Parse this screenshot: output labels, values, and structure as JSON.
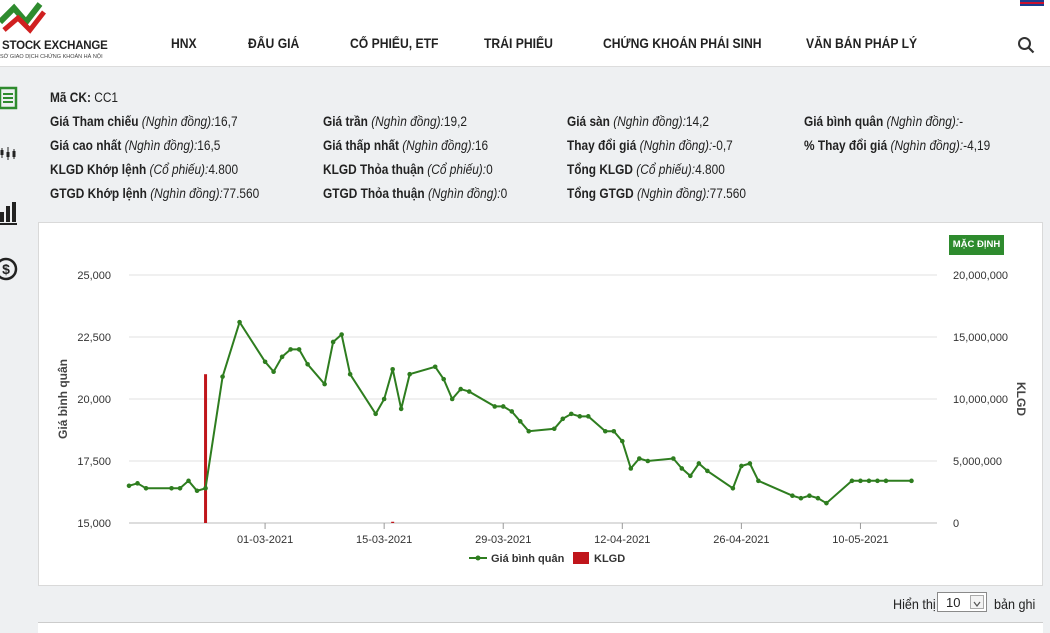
{
  "header": {
    "logo_title": "STOCK EXCHANGE",
    "logo_subtitle": "SỞ GIAO DỊCH CHỨNG KHOÁN HÀ NỘI",
    "nav": [
      "HNX",
      "ĐẤU GIÁ",
      "CỔ PHIẾU, ETF",
      "TRÁI PHIẾU",
      "CHỨNG KHOÁN PHÁI SINH",
      "VĂN BẢN PHÁP LÝ"
    ]
  },
  "sidebar": {
    "icons": [
      "list-icon",
      "candlestick-icon",
      "bar-chart-icon",
      "dollar-icon"
    ]
  },
  "info": {
    "code_label": "Mã CK:",
    "code_value": "CC1",
    "rows": [
      [
        {
          "label": "Giá Tham chiếu",
          "unit": "(Nghìn đồng):",
          "value": "16,7"
        },
        {
          "label": "Giá trần",
          "unit": "(Nghìn đồng):",
          "value": "19,2"
        },
        {
          "label": "Giá sàn",
          "unit": "(Nghìn đồng):",
          "value": "14,2"
        },
        {
          "label": "Giá bình quân",
          "unit": "(Nghìn đồng):",
          "value": "-"
        }
      ],
      [
        {
          "label": "Giá cao nhất",
          "unit": "(Nghìn đồng):",
          "value": "16,5"
        },
        {
          "label": "Giá thấp nhất",
          "unit": "(Nghìn đồng):",
          "value": "16"
        },
        {
          "label": "Thay đổi giá",
          "unit": "(Nghìn đồng):",
          "value": "-0,7"
        },
        {
          "label": "% Thay đổi giá",
          "unit": "(Nghìn đồng):",
          "value": "-4,19"
        }
      ],
      [
        {
          "label": "KLGD Khớp lệnh",
          "unit": "(Cổ phiếu):",
          "value": "4.800"
        },
        {
          "label": "KLGD Thỏa thuận",
          "unit": "(Cổ phiếu):",
          "value": "0"
        },
        {
          "label": "Tổng KLGD",
          "unit": "(Cổ phiếu):",
          "value": "4.800"
        },
        null
      ],
      [
        {
          "label": "GTGD Khớp lệnh",
          "unit": "(Nghìn đồng):",
          "value": "77.560"
        },
        {
          "label": "GTGD Thỏa thuận",
          "unit": "(Nghìn đồng):",
          "value": "0"
        },
        {
          "label": "Tổng GTGD",
          "unit": "(Nghìn đồng):",
          "value": "77.560"
        },
        null
      ]
    ]
  },
  "chart_button": "MẶC ĐỊNH",
  "chart_data": {
    "type": "line",
    "ylabel": "Giá bình quân",
    "y2label": "KLGD",
    "ylim": [
      15000,
      25000
    ],
    "y2lim": [
      0,
      20000000
    ],
    "yticks": [
      "25,000",
      "22,500",
      "20,000",
      "17,500",
      "15,000"
    ],
    "y2ticks": [
      "20,000,000",
      "15,000,000",
      "10,000,000",
      "5,000,000",
      "0"
    ],
    "xticks": [
      "01-03-2021",
      "15-03-2021",
      "29-03-2021",
      "12-04-2021",
      "26-04-2021",
      "10-05-2021"
    ],
    "xtick_days": [
      16,
      30,
      44,
      58,
      72,
      86
    ],
    "grid": true,
    "legend_position": "bottom",
    "series": [
      {
        "name": "Giá bình quân",
        "color": "#2e7d1f",
        "x": [
          "2021-02-13",
          "2021-02-14",
          "2021-02-15",
          "2021-02-18",
          "2021-02-19",
          "2021-02-20",
          "2021-02-21",
          "2021-02-22",
          "2021-02-24",
          "2021-02-26",
          "2021-03-01",
          "2021-03-02",
          "2021-03-03",
          "2021-03-04",
          "2021-03-05",
          "2021-03-06",
          "2021-03-08",
          "2021-03-09",
          "2021-03-10",
          "2021-03-11",
          "2021-03-14",
          "2021-03-15",
          "2021-03-16",
          "2021-03-17",
          "2021-03-18",
          "2021-03-21",
          "2021-03-22",
          "2021-03-23",
          "2021-03-24",
          "2021-03-25",
          "2021-03-28",
          "2021-03-29",
          "2021-03-30",
          "2021-03-31",
          "2021-04-01",
          "2021-04-04",
          "2021-04-05",
          "2021-04-06",
          "2021-04-07",
          "2021-04-08",
          "2021-04-10",
          "2021-04-11",
          "2021-04-12",
          "2021-04-13",
          "2021-04-14",
          "2021-04-15",
          "2021-04-18",
          "2021-04-19",
          "2021-04-20",
          "2021-04-21",
          "2021-04-22",
          "2021-04-25",
          "2021-04-26",
          "2021-04-27",
          "2021-04-28",
          "2021-05-02",
          "2021-05-03",
          "2021-05-04",
          "2021-05-05",
          "2021-05-06",
          "2021-05-09",
          "2021-05-10",
          "2021-05-11",
          "2021-05-12",
          "2021-05-13",
          "2021-05-16"
        ],
        "values": [
          16500,
          16600,
          16400,
          16400,
          16400,
          16700,
          16300,
          16400,
          20900,
          23100,
          21500,
          21100,
          21700,
          22000,
          22000,
          21400,
          20600,
          22300,
          22600,
          21000,
          19400,
          20000,
          21200,
          19600,
          21000,
          21300,
          20800,
          20000,
          20400,
          20300,
          19700,
          19700,
          19500,
          19100,
          18700,
          18800,
          19200,
          19400,
          19300,
          19300,
          18700,
          18700,
          18300,
          17200,
          17600,
          17500,
          17600,
          17200,
          16900,
          17400,
          17100,
          16400,
          17300,
          17400,
          16700,
          16100,
          16000,
          16100,
          16000,
          15800,
          16700,
          16700,
          16700,
          16700,
          16700,
          16700
        ]
      },
      {
        "name": "KLGD",
        "color": "#c0151b",
        "x": [
          "2021-02-22",
          "2021-03-16"
        ],
        "values": [
          12000000,
          100000
        ]
      }
    ]
  },
  "pager": {
    "label": "Hiển thị",
    "value": "10",
    "suffix": "bản ghi"
  }
}
